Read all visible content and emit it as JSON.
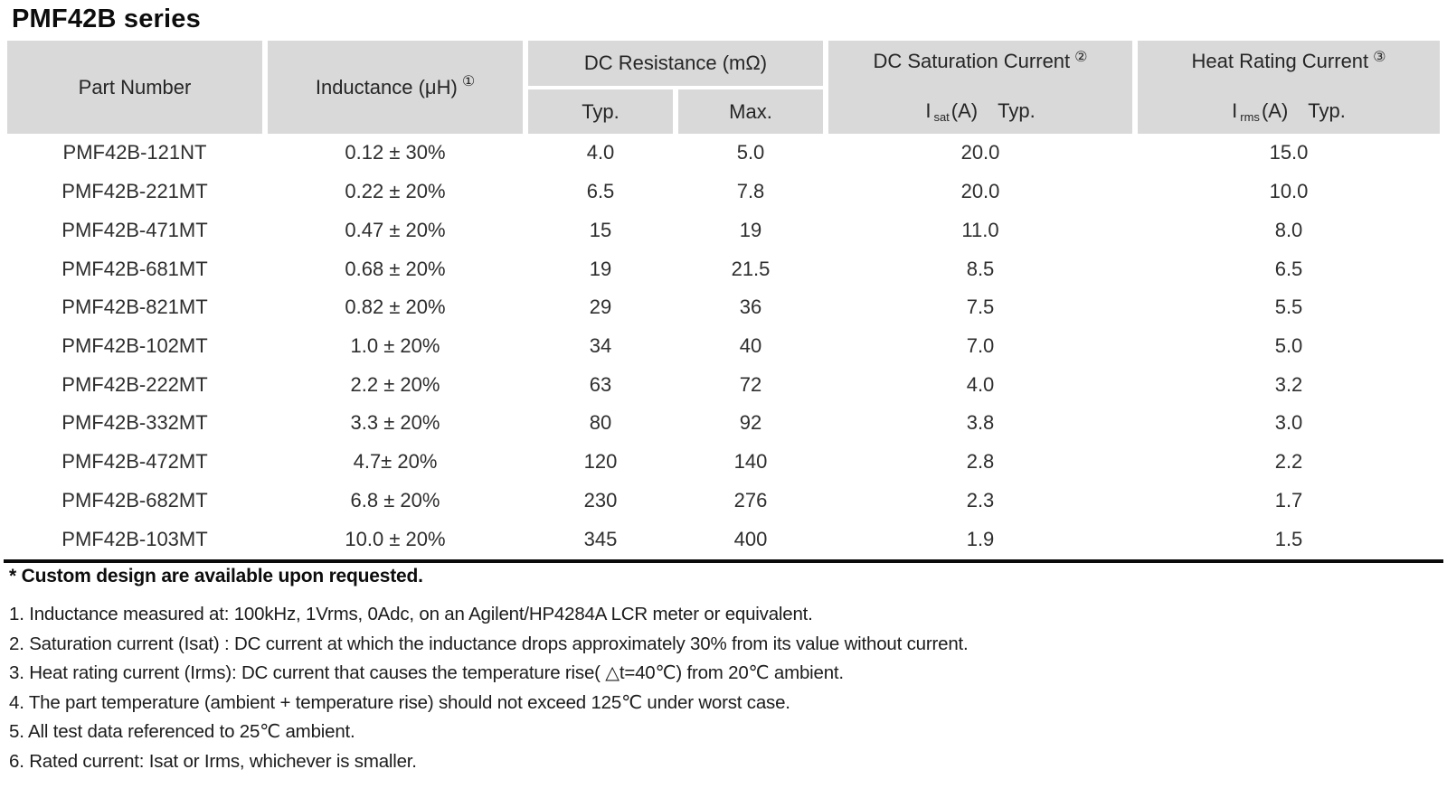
{
  "title": "PMF42B series",
  "colors": {
    "header_bg": "#d9d9d9",
    "text": "#1c1c1c",
    "rule": "#0a0a0a"
  },
  "table": {
    "headers": {
      "part_number": "Part Number",
      "inductance": {
        "label": "Inductance (μH)",
        "note_ref": "①"
      },
      "dc_resistance": {
        "label": "DC Resistance (mΩ)",
        "typ": "Typ.",
        "max": "Max."
      },
      "dc_saturation": {
        "label": "DC Saturation Current",
        "note_ref": "②",
        "symbol": "I",
        "subscript": "sat",
        "unit": "(A)",
        "qual": "Typ."
      },
      "heat_rating": {
        "label": "Heat Rating Current",
        "note_ref": "③",
        "symbol": "I",
        "subscript": "rms",
        "unit": "(A)",
        "qual": "Typ."
      }
    },
    "rows": [
      {
        "part": "PMF42B-121NT",
        "inductance": "0.12 ± 30%",
        "rdc_typ": "4.0",
        "rdc_max": "5.0",
        "isat_typ": "20.0",
        "irms_typ": "15.0"
      },
      {
        "part": "PMF42B-221MT",
        "inductance": "0.22 ± 20%",
        "rdc_typ": "6.5",
        "rdc_max": "7.8",
        "isat_typ": "20.0",
        "irms_typ": "10.0"
      },
      {
        "part": "PMF42B-471MT",
        "inductance": "0.47 ± 20%",
        "rdc_typ": "15",
        "rdc_max": "19",
        "isat_typ": "11.0",
        "irms_typ": "8.0"
      },
      {
        "part": "PMF42B-681MT",
        "inductance": "0.68 ± 20%",
        "rdc_typ": "19",
        "rdc_max": "21.5",
        "isat_typ": "8.5",
        "irms_typ": "6.5"
      },
      {
        "part": "PMF42B-821MT",
        "inductance": "0.82 ± 20%",
        "rdc_typ": "29",
        "rdc_max": "36",
        "isat_typ": "7.5",
        "irms_typ": "5.5"
      },
      {
        "part": "PMF42B-102MT",
        "inductance": "1.0 ± 20%",
        "rdc_typ": "34",
        "rdc_max": "40",
        "isat_typ": "7.0",
        "irms_typ": "5.0"
      },
      {
        "part": "PMF42B-222MT",
        "inductance": "2.2 ± 20%",
        "rdc_typ": "63",
        "rdc_max": "72",
        "isat_typ": "4.0",
        "irms_typ": "3.2"
      },
      {
        "part": "PMF42B-332MT",
        "inductance": "3.3 ± 20%",
        "rdc_typ": "80",
        "rdc_max": "92",
        "isat_typ": "3.8",
        "irms_typ": "3.0"
      },
      {
        "part": "PMF42B-472MT",
        "inductance": "4.7± 20%",
        "rdc_typ": "120",
        "rdc_max": "140",
        "isat_typ": "2.8",
        "irms_typ": "2.2"
      },
      {
        "part": "PMF42B-682MT",
        "inductance": "6.8 ± 20%",
        "rdc_typ": "230",
        "rdc_max": "276",
        "isat_typ": "2.3",
        "irms_typ": "1.7"
      },
      {
        "part": "PMF42B-103MT",
        "inductance": "10.0 ± 20%",
        "rdc_typ": "345",
        "rdc_max": "400",
        "isat_typ": "1.9",
        "irms_typ": "1.5"
      }
    ]
  },
  "notes": {
    "custom": "* Custom design are available upon requested.",
    "items": [
      "1. Inductance measured at: 100kHz, 1Vrms, 0Adc, on an Agilent/HP4284A LCR meter or equivalent.",
      "2. Saturation current (Isat) : DC current at which the inductance drops approximately 30% from its value without current.",
      "3. Heat rating current (Irms): DC current that causes the temperature rise( △t=40℃) from 20℃ ambient.",
      "4. The part temperature (ambient + temperature rise) should not exceed 125℃ under worst case.",
      "5. All test data referenced to 25℃ ambient.",
      "6. Rated current: Isat or Irms, whichever is smaller."
    ]
  }
}
